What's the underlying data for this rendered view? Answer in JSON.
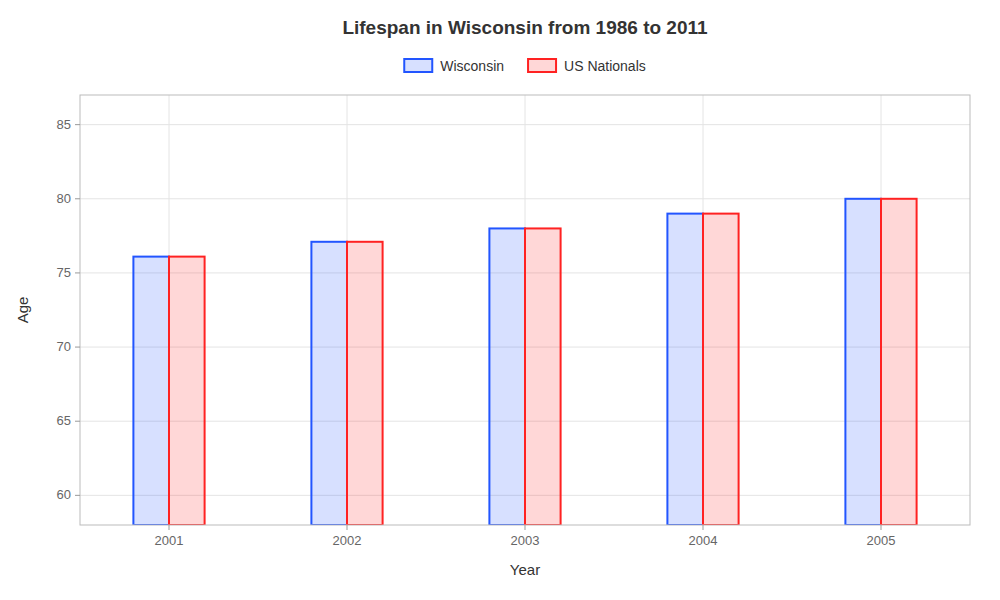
{
  "chart_data": {
    "type": "bar",
    "title": "Lifespan in Wisconsin from 1986 to 2011",
    "x_label": "Year",
    "y_label": "Age",
    "categories": [
      "2001",
      "2002",
      "2003",
      "2004",
      "2005"
    ],
    "series": [
      {
        "name": "Wisconsin",
        "color": "#2255ff",
        "values": [
          76.1,
          77.1,
          78.0,
          79.0,
          80.0
        ]
      },
      {
        "name": "US Nationals",
        "color": "#ff2222",
        "values": [
          76.1,
          77.1,
          78.0,
          79.0,
          80.0
        ]
      }
    ],
    "ylim": [
      58,
      87
    ],
    "yticks": [
      60,
      65,
      70,
      75,
      80,
      85
    ],
    "grid": true,
    "legend": "top"
  }
}
